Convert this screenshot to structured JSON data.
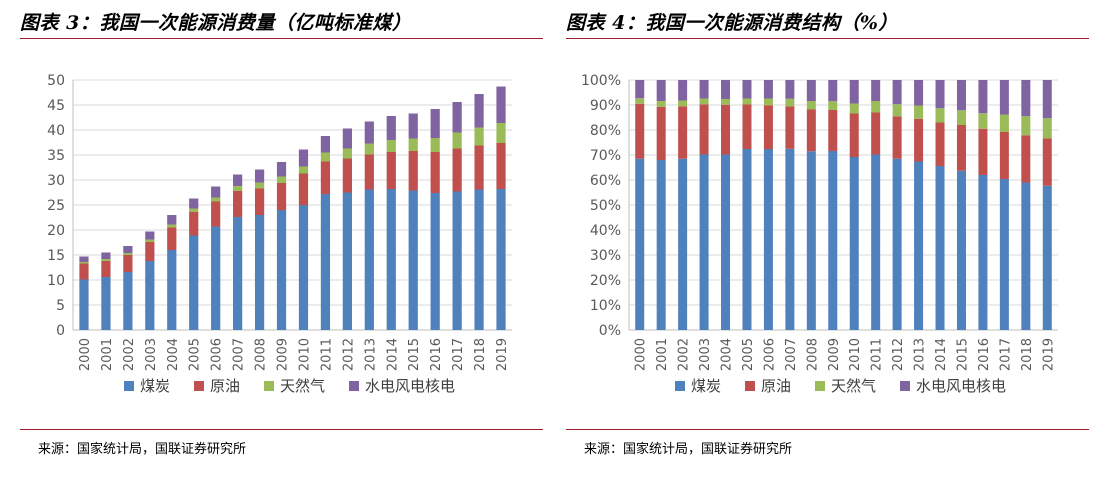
{
  "left": {
    "title": "图表 3：我国一次能源消费量（亿吨标准煤）",
    "source": "来源：国家统计局，国联证券研究所"
  },
  "right": {
    "title": "图表 4：我国一次能源消费结构（%）",
    "source": "来源：国家统计局，国联证券研究所"
  },
  "colors": {
    "coal": "#4f81bd",
    "oil": "#c0504d",
    "gas": "#9bbb59",
    "hydro": "#8064a2"
  },
  "chart_data": [
    {
      "type": "bar",
      "stacked": true,
      "title": "",
      "xlabel": "",
      "ylabel": "",
      "ylim": [
        0,
        50
      ],
      "yticks": [
        "0",
        "5",
        "10",
        "15",
        "20",
        "25",
        "30",
        "35",
        "40",
        "45",
        "50"
      ],
      "grid": true,
      "legend": "bottom",
      "categories": [
        "2000",
        "2001",
        "2002",
        "2003",
        "2004",
        "2005",
        "2006",
        "2007",
        "2008",
        "2009",
        "2010",
        "2011",
        "2012",
        "2013",
        "2014",
        "2015",
        "2016",
        "2017",
        "2018",
        "2019"
      ],
      "series": [
        {
          "name": "煤炭",
          "values": [
            10.1,
            10.6,
            11.6,
            13.8,
            16.0,
            18.9,
            20.7,
            22.6,
            23.0,
            24.0,
            25.0,
            27.2,
            27.5,
            28.1,
            28.2,
            27.9,
            27.4,
            27.7,
            28.1,
            28.2
          ]
        },
        {
          "name": "原油",
          "values": [
            3.2,
            3.2,
            3.4,
            3.8,
            4.5,
            4.7,
            5.0,
            5.2,
            5.3,
            5.4,
            6.3,
            6.5,
            6.8,
            7.0,
            7.4,
            7.9,
            8.2,
            8.6,
            8.8,
            9.2
          ]
        },
        {
          "name": "天然气",
          "values": [
            0.3,
            0.4,
            0.4,
            0.5,
            0.6,
            0.7,
            0.8,
            1.0,
            1.2,
            1.3,
            1.4,
            1.8,
            2.0,
            2.2,
            2.4,
            2.5,
            2.8,
            3.2,
            3.6,
            4.0
          ]
        },
        {
          "name": "水电风电核电",
          "values": [
            1.1,
            1.3,
            1.4,
            1.6,
            1.9,
            2.0,
            2.2,
            2.3,
            2.6,
            2.9,
            3.4,
            3.3,
            4.0,
            4.4,
            4.8,
            5.0,
            5.8,
            6.1,
            6.7,
            7.3
          ]
        }
      ]
    },
    {
      "type": "bar",
      "stacked": true,
      "title": "",
      "xlabel": "",
      "ylabel": "",
      "ylim": [
        0,
        100
      ],
      "yticks": [
        "0%",
        "10%",
        "20%",
        "30%",
        "40%",
        "50%",
        "60%",
        "70%",
        "80%",
        "90%",
        "100%"
      ],
      "grid": true,
      "legend": "bottom",
      "categories": [
        "2000",
        "2001",
        "2002",
        "2003",
        "2004",
        "2005",
        "2006",
        "2007",
        "2008",
        "2009",
        "2010",
        "2011",
        "2012",
        "2013",
        "2014",
        "2015",
        "2016",
        "2017",
        "2018",
        "2019"
      ],
      "series": [
        {
          "name": "煤炭",
          "values": [
            68.5,
            68.0,
            68.5,
            70.2,
            70.2,
            72.4,
            72.4,
            72.5,
            71.5,
            71.6,
            69.2,
            70.2,
            68.5,
            67.4,
            65.6,
            63.7,
            62.0,
            60.4,
            59.0,
            57.7
          ]
        },
        {
          "name": "原油",
          "values": [
            22.0,
            21.2,
            21.0,
            20.1,
            19.9,
            17.8,
            17.5,
            17.0,
            16.7,
            16.4,
            17.4,
            16.8,
            17.0,
            17.1,
            17.4,
            18.3,
            18.5,
            18.8,
            18.9,
            19.0
          ]
        },
        {
          "name": "天然气",
          "values": [
            2.2,
            2.4,
            2.3,
            2.3,
            2.3,
            2.4,
            2.7,
            3.0,
            3.4,
            3.5,
            4.0,
            4.6,
            4.8,
            5.3,
            5.7,
            5.9,
            6.2,
            7.0,
            7.6,
            8.0
          ]
        },
        {
          "name": "水电风电核电",
          "values": [
            7.3,
            8.4,
            8.2,
            7.4,
            7.6,
            7.4,
            7.4,
            7.5,
            8.4,
            8.5,
            9.4,
            8.4,
            9.7,
            10.2,
            11.3,
            12.1,
            13.3,
            13.8,
            14.5,
            15.3
          ]
        }
      ]
    }
  ]
}
